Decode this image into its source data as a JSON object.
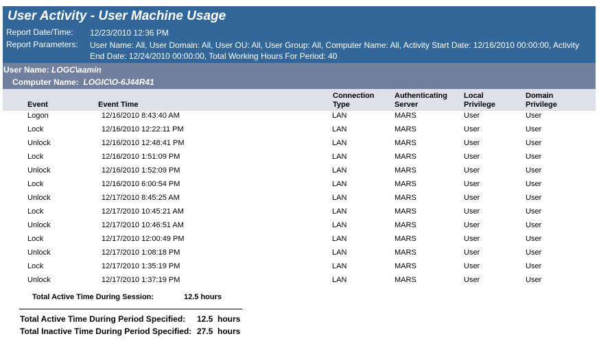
{
  "report": {
    "title": "User Activity - User Machine Usage",
    "date_label": "Report Date/Time:",
    "date_value": "12/23/2010 12:36 PM",
    "params_label": "Report Parameters:",
    "params_value": "User Name:  All, User Domain:  All, User OU:  All, User Group:  All, Computer Name:  All, Activity Start Date:  12/16/2010 00:00:00, Activity End Date:  12/24/2010 00:00:00, Total Working Hours For Period:  40"
  },
  "group": {
    "user_label": "User Name:",
    "user_value": "LOGC\\aamin",
    "computer_label": "Computer Name:",
    "computer_value": "LOGIC\\O-6J44R41"
  },
  "columns": [
    "Event",
    "Event Time",
    "Connection Type",
    "Authenticating Server",
    "Local Privilege",
    "Domain Privilege"
  ],
  "rows": [
    [
      "Logon",
      "12/16/2010 8:43:40 AM",
      "LAN",
      "MARS",
      "User",
      "User"
    ],
    [
      "Lock",
      "12/16/2010 12:22:11 PM",
      "LAN",
      "MARS",
      "User",
      "User"
    ],
    [
      "Unlock",
      "12/16/2010 12:48:41 PM",
      "LAN",
      "MARS",
      "User",
      "User"
    ],
    [
      "Lock",
      "12/16/2010 1:51:09 PM",
      "LAN",
      "MARS",
      "User",
      "User"
    ],
    [
      "Unlock",
      "12/16/2010 1:52:09 PM",
      "LAN",
      "MARS",
      "User",
      "User"
    ],
    [
      "Lock",
      "12/16/2010 6:00:54 PM",
      "LAN",
      "MARS",
      "User",
      "User"
    ],
    [
      "Unlock",
      "12/17/2010 8:45:25 AM",
      "LAN",
      "MARS",
      "User",
      "User"
    ],
    [
      "Lock",
      "12/17/2010 10:45:21 AM",
      "LAN",
      "MARS",
      "User",
      "User"
    ],
    [
      "Unlock",
      "12/17/2010 10:46:51 AM",
      "LAN",
      "MARS",
      "User",
      "User"
    ],
    [
      "Lock",
      "12/17/2010 12:00:49 PM",
      "LAN",
      "MARS",
      "User",
      "User"
    ],
    [
      "Unlock",
      "12/17/2010 1:08:18 PM",
      "LAN",
      "MARS",
      "User",
      "User"
    ],
    [
      "Lock",
      "12/17/2010 1:35:19 PM",
      "LAN",
      "MARS",
      "User",
      "User"
    ],
    [
      "Unlock",
      "12/17/2010 1:37:19 PM",
      "LAN",
      "MARS",
      "User",
      "User"
    ]
  ],
  "totals": {
    "session_label": "Total Active Time During Session:",
    "session_value": "12.5 hours",
    "active_label": "Total Active Time During Period Specified:",
    "active_value": "12.5  hours",
    "inactive_label": "Total Inactive Time During Period Specified:",
    "inactive_value": "27.5  hours"
  }
}
